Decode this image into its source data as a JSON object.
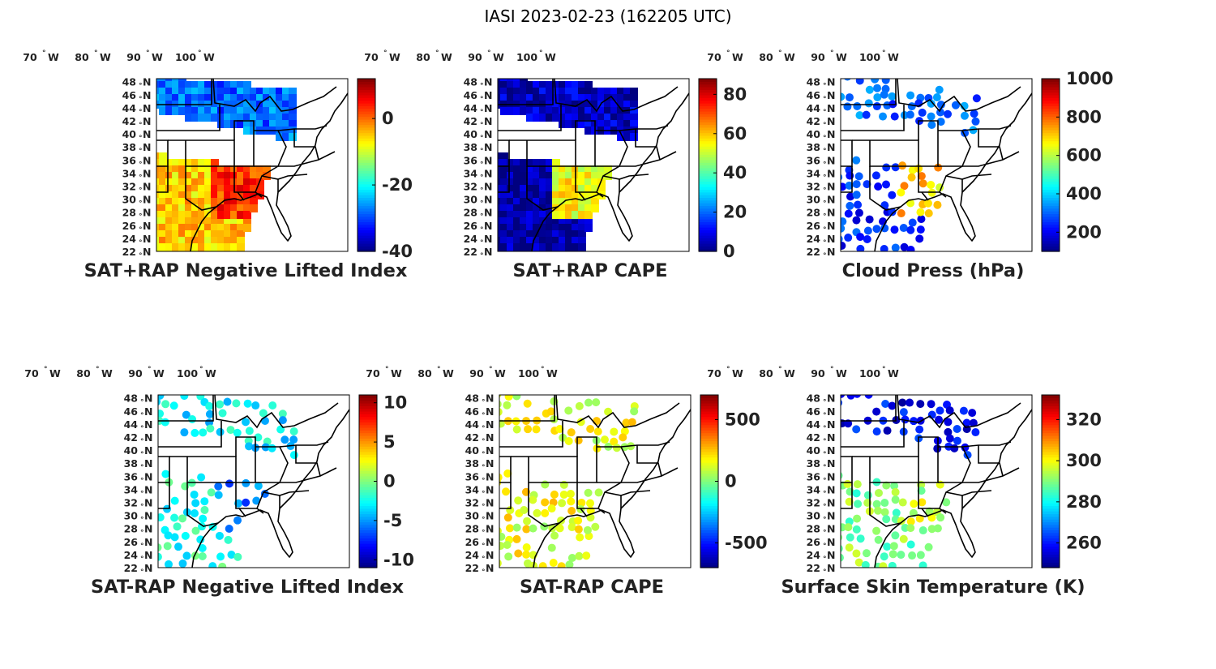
{
  "figure": {
    "title": "IASI 2023-02-23 (162205 UTC)"
  },
  "map_axes": {
    "lon_label": "W",
    "lat_label": "N",
    "degree_symbol": "°",
    "lon_ticks": [
      "100",
      "90",
      "80",
      "70"
    ],
    "lat_ticks": [
      "48",
      "46",
      "44",
      "42",
      "40",
      "38",
      "36",
      "34",
      "32",
      "30",
      "28",
      "26",
      "24",
      "22"
    ]
  },
  "colormap": "jet",
  "colors": {
    "jet": [
      "#00007f",
      "#0000ff",
      "#007fff",
      "#00ffff",
      "#7fff7f",
      "#ffff00",
      "#ff7f00",
      "#ff0000",
      "#7f0000"
    ]
  },
  "chart_data": [
    {
      "type": "heatmap",
      "title": "SAT+RAP Negative Lifted Index",
      "colorbar": {
        "range": [
          -40,
          12
        ],
        "ticks": [
          0,
          -20,
          -40
        ],
        "tick_labels": [
          "0",
          "-20",
          "-40"
        ]
      },
      "render": "swath",
      "fields": [
        {
          "region": "north-swath",
          "value": -28
        },
        {
          "region": "south-west",
          "value": -5
        },
        {
          "region": "south-east",
          "value": 3
        }
      ]
    },
    {
      "type": "heatmap",
      "title": "SAT+RAP CAPE",
      "colorbar": {
        "range": [
          0,
          88
        ],
        "ticks": [
          80,
          60,
          40,
          20,
          0
        ],
        "tick_labels": [
          "80",
          "60",
          "40",
          "20",
          "0"
        ]
      },
      "render": "swath",
      "fields": [
        {
          "region": "north-swath",
          "value": 6
        },
        {
          "region": "south-west",
          "value": 2
        },
        {
          "region": "south-east",
          "value": 55
        }
      ]
    },
    {
      "type": "heatmap",
      "title": "Cloud Press (hPa)",
      "colorbar": {
        "range": [
          100,
          1000
        ],
        "ticks": [
          1000,
          800,
          600,
          400,
          200
        ],
        "tick_labels": [
          "1000",
          "800",
          "600",
          "400",
          "200"
        ]
      },
      "render": "dots",
      "fields": [
        {
          "region": "north-swath",
          "value": 300
        },
        {
          "region": "south-west",
          "value": 250
        },
        {
          "region": "south-east",
          "value": 700
        }
      ]
    },
    {
      "type": "heatmap",
      "title": "SAT-RAP Negative Lifted Index",
      "colorbar": {
        "range": [
          -11,
          11
        ],
        "ticks": [
          10,
          5,
          0,
          -5,
          -10
        ],
        "tick_labels": [
          "10",
          "5",
          "0",
          "-5",
          "-10"
        ]
      },
      "render": "dots",
      "fields": [
        {
          "region": "north-swath",
          "value": -3
        },
        {
          "region": "south-west",
          "value": -2
        },
        {
          "region": "south-east",
          "value": -6
        }
      ]
    },
    {
      "type": "heatmap",
      "title": "SAT-RAP CAPE",
      "colorbar": {
        "range": [
          -700,
          700
        ],
        "ticks": [
          500,
          0,
          -500
        ],
        "tick_labels": [
          "500",
          "0",
          "-500"
        ]
      },
      "render": "dots",
      "fields": [
        {
          "region": "north-swath",
          "value": 150
        },
        {
          "region": "south-west",
          "value": 150
        },
        {
          "region": "south-east",
          "value": 150
        }
      ]
    },
    {
      "type": "heatmap",
      "title": "Surface Skin Temperature (K)",
      "colorbar": {
        "range": [
          248,
          332
        ],
        "ticks": [
          320,
          300,
          280,
          260
        ],
        "tick_labels": [
          "320",
          "300",
          "280",
          "260"
        ]
      },
      "render": "dots",
      "fields": [
        {
          "region": "north-swath",
          "value": 258
        },
        {
          "region": "south-west",
          "value": 290
        },
        {
          "region": "south-east",
          "value": 295
        }
      ]
    }
  ]
}
